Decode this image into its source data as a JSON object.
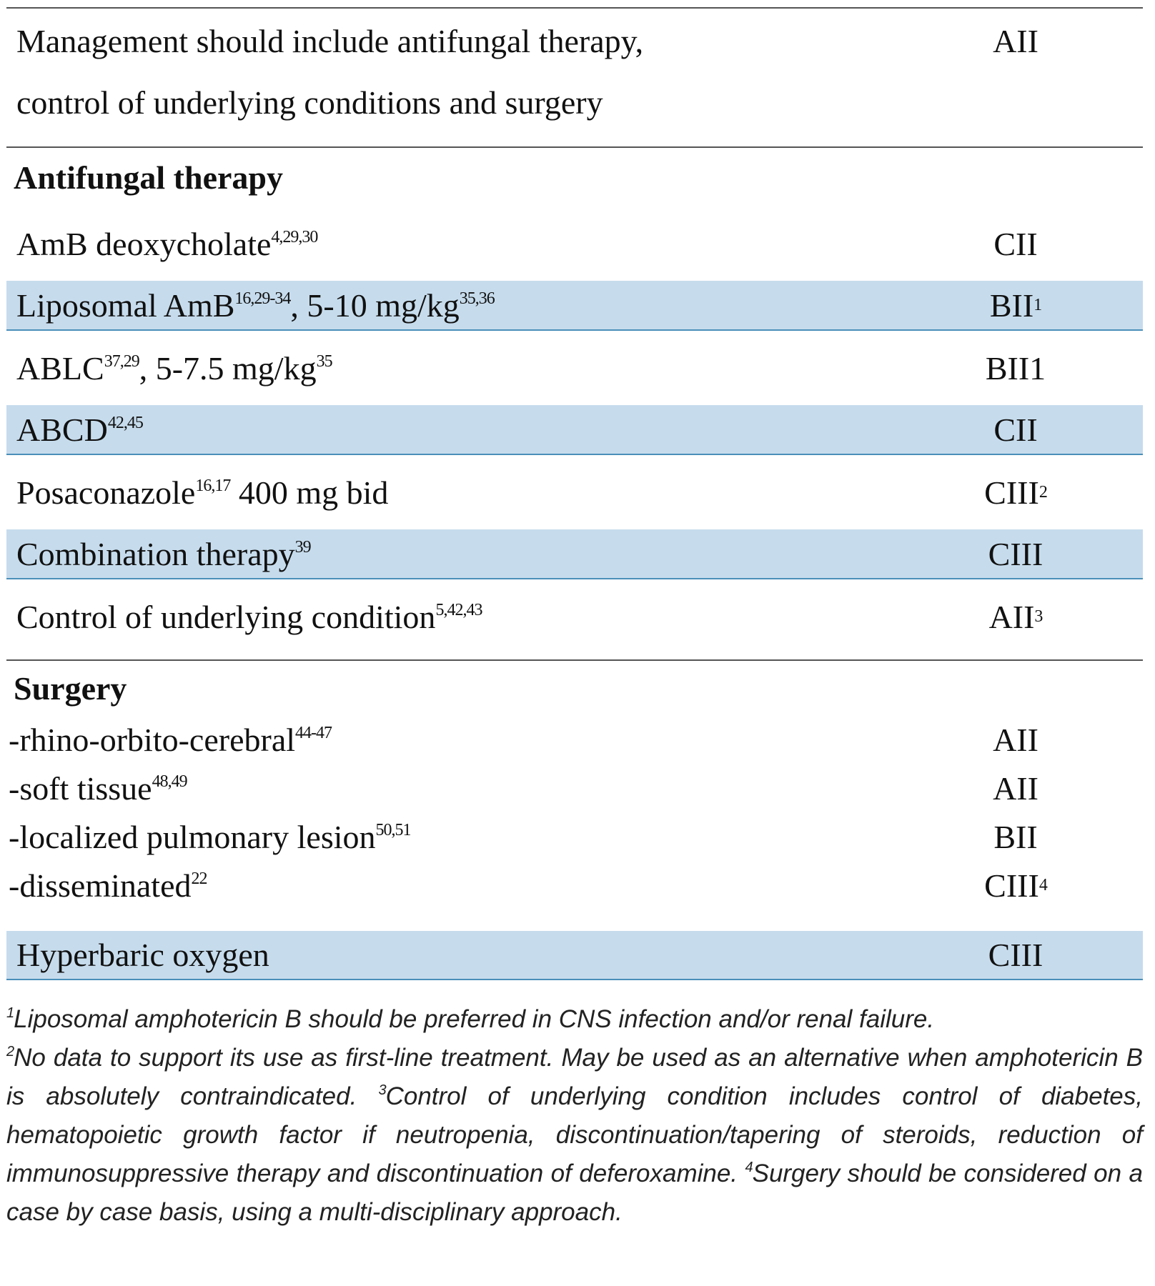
{
  "intro": {
    "lines": [
      "Management should include antifungal therapy,",
      "control of underlying conditions and surgery"
    ],
    "grade": "AII"
  },
  "sections": [
    {
      "title": "Antifungal therapy",
      "rows": [
        {
          "parts": [
            {
              "text": "AmB deoxycholate",
              "sup": "4,29,30"
            }
          ],
          "grade": "CII",
          "highlight": false
        },
        {
          "parts": [
            {
              "text": "Liposomal AmB",
              "sup": "16,29-34"
            },
            {
              "text": ", 5-10 mg/kg",
              "sup": "35,36"
            }
          ],
          "grade": "BII",
          "grade_sup": "1",
          "highlight": true
        },
        {
          "parts": [
            {
              "text": "ABLC",
              "sup": "37,29"
            },
            {
              "text": ", 5-7.5 mg/kg",
              "sup": "35"
            }
          ],
          "grade": "BII1",
          "highlight": false
        },
        {
          "parts": [
            {
              "text": "ABCD",
              "sup": "42,45"
            }
          ],
          "grade": "CII",
          "highlight": true
        },
        {
          "parts": [
            {
              "text": "Posaconazole",
              "sup": "16,17"
            },
            {
              "text": " 400 mg bid"
            }
          ],
          "grade": "CIII",
          "grade_sup": "2",
          "highlight": false
        },
        {
          "parts": [
            {
              "text": "Combination therapy",
              "sup": "39"
            }
          ],
          "grade": "CIII",
          "highlight": true
        },
        {
          "parts": [
            {
              "text": "Control of underlying condition",
              "sup": "5,42,43"
            }
          ],
          "grade": "AII",
          "grade_sup": "3",
          "highlight": false
        }
      ]
    },
    {
      "title": "Surgery",
      "rows": [
        {
          "parts": [
            {
              "text": "-rhino-orbito-cerebral",
              "sup": "44-47"
            }
          ],
          "grade": "AII",
          "highlight": false
        },
        {
          "parts": [
            {
              "text": "-soft tissue",
              "sup": "48,49"
            }
          ],
          "grade": "AII",
          "highlight": false
        },
        {
          "parts": [
            {
              "text": "-localized pulmonary lesion",
              "sup": "50,51"
            }
          ],
          "grade": "BII",
          "highlight": false
        },
        {
          "parts": [
            {
              "text": "-disseminated",
              "sup": "22"
            }
          ],
          "grade": "CIII",
          "grade_sup": "4",
          "highlight": false
        }
      ]
    }
  ],
  "final_row": {
    "parts": [
      {
        "text": "Hyperbaric oxygen"
      }
    ],
    "grade": "CIII",
    "highlight": true
  },
  "footnotes": [
    {
      "mark": "1",
      "text": "Liposomal amphotericin B should be preferred in CNS infection and/or renal failure."
    },
    {
      "mark": "2",
      "text": "No data to support its use as first-line treatment. May be used as an alternative when amphotericin B is absolutely contraindicated. "
    },
    {
      "mark": "3",
      "text": "Control of underlying condition includes control of diabetes, hematopoietic growth factor if neutropenia, discontinuation/tapering of steroids, reduction of immunosuppressive therapy and discontinuation of deferoxamine. "
    },
    {
      "mark": "4",
      "text": "Surgery should be considered on a case by case basis, using a multi-disciplinary approach."
    }
  ]
}
